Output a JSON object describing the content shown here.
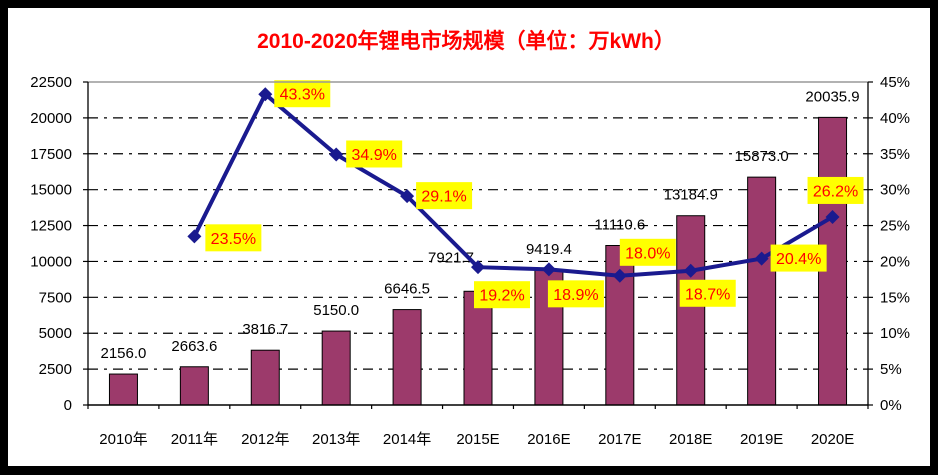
{
  "title": "2010-2020年锂电市场规模（单位：万kWh）",
  "colors": {
    "frame": "#000000",
    "background": "#FFFFFF",
    "title": "#FF0000",
    "bar_fill": "#9C3A6B",
    "bar_border": "#000000",
    "line": "#1A1A8F",
    "marker": "#1A1A8F",
    "grid": "#000000",
    "plot_border": "#000000",
    "plot_top_border": "#999999",
    "axis_text": "#000000",
    "value_label_text": "#000000",
    "pct_label_bg": "#FFFF00",
    "pct_label_text": "#FF0000"
  },
  "chart_data": {
    "type": "combo-bar-line",
    "title": "2010-2020年锂电市场规模（单位：万kWh）",
    "categories": [
      "2010年",
      "2011年",
      "2012年",
      "2013年",
      "2014年",
      "2015E",
      "2016E",
      "2017E",
      "2018E",
      "2019E",
      "2020E"
    ],
    "series": [
      {
        "name": "market-size-bars",
        "type": "bar",
        "axis": "left",
        "values": [
          2156.0,
          2663.6,
          3816.7,
          5150.0,
          6646.5,
          7921.7,
          9419.4,
          11110.6,
          13184.9,
          15873.0,
          20035.9
        ],
        "labels": [
          "2156.0",
          "2663.6",
          "3816.7",
          "5150.0",
          "6646.5",
          "7921.7",
          "9419.4",
          "11110.6",
          "13184.9",
          "15873.0",
          "20035.9"
        ]
      },
      {
        "name": "growth-rate-line",
        "type": "line",
        "axis": "right",
        "values": [
          null,
          23.5,
          43.3,
          34.9,
          29.1,
          19.2,
          18.9,
          18.0,
          18.7,
          20.4,
          26.2
        ],
        "labels": [
          null,
          "23.5%",
          "43.3%",
          "34.9%",
          "29.1%",
          "19.2%",
          "18.9%",
          "18.0%",
          "18.7%",
          "20.4%",
          "26.2%"
        ]
      }
    ],
    "left_axis": {
      "min": 0,
      "max": 22500,
      "step": 2500,
      "ticks": [
        "0",
        "2500",
        "5000",
        "7500",
        "10000",
        "12500",
        "15000",
        "17500",
        "20000",
        "22500"
      ]
    },
    "right_axis": {
      "min": 0,
      "max": 45,
      "step": 5,
      "ticks": [
        "0%",
        "5%",
        "10%",
        "15%",
        "20%",
        "25%",
        "30%",
        "35%",
        "40%",
        "45%"
      ]
    },
    "grid": "horizontal dash-dot",
    "legend": "none"
  }
}
